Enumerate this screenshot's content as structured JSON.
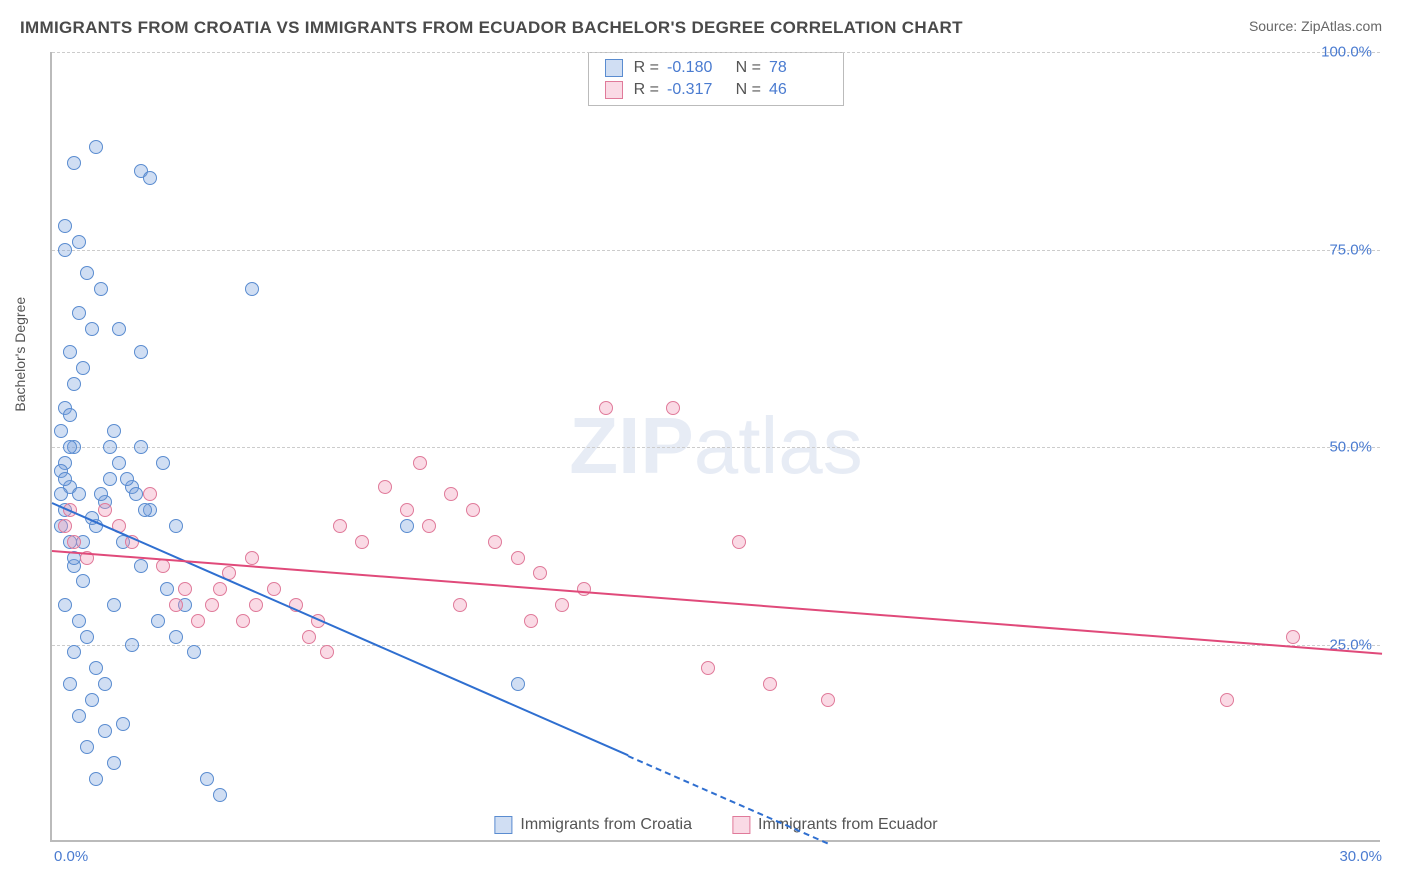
{
  "title": "IMMIGRANTS FROM CROATIA VS IMMIGRANTS FROM ECUADOR BACHELOR'S DEGREE CORRELATION CHART",
  "source": "Source: ZipAtlas.com",
  "watermark_bold": "ZIP",
  "watermark_rest": "atlas",
  "ylabel": "Bachelor's Degree",
  "chart": {
    "type": "scatter",
    "xlim": [
      0,
      30
    ],
    "ylim": [
      0,
      100
    ],
    "x_tick_labels": [
      "0.0%",
      "30.0%"
    ],
    "y_ticks": [
      25,
      50,
      75,
      100
    ],
    "y_tick_labels": [
      "25.0%",
      "50.0%",
      "75.0%",
      "100.0%"
    ],
    "background_color": "#ffffff",
    "grid_color": "#cccccc",
    "grid_dash": true,
    "marker_radius": 7,
    "marker_stroke_width": 1.2,
    "series": [
      {
        "name": "Immigrants from Croatia",
        "fill_color": "rgba(120,160,220,0.35)",
        "stroke_color": "#5a8cd0",
        "R": "-0.180",
        "N": "78",
        "regression": {
          "x0": 0,
          "y0": 43,
          "x1": 17.5,
          "y1": 0,
          "x_data_max": 13,
          "color": "#2f6fd0",
          "width": 2
        },
        "points": [
          [
            0.2,
            40
          ],
          [
            0.3,
            42
          ],
          [
            0.4,
            45
          ],
          [
            0.3,
            48
          ],
          [
            0.5,
            50
          ],
          [
            0.2,
            47
          ],
          [
            0.6,
            44
          ],
          [
            0.4,
            38
          ],
          [
            0.5,
            35
          ],
          [
            0.7,
            33
          ],
          [
            0.3,
            30
          ],
          [
            0.6,
            28
          ],
          [
            0.8,
            26
          ],
          [
            0.5,
            24
          ],
          [
            1.0,
            22
          ],
          [
            0.4,
            20
          ],
          [
            0.9,
            18
          ],
          [
            0.6,
            16
          ],
          [
            1.2,
            14
          ],
          [
            0.8,
            12
          ],
          [
            1.4,
            10
          ],
          [
            1.0,
            8
          ],
          [
            1.6,
            15
          ],
          [
            1.2,
            20
          ],
          [
            1.8,
            25
          ],
          [
            1.4,
            30
          ],
          [
            2.0,
            35
          ],
          [
            1.6,
            38
          ],
          [
            2.2,
            42
          ],
          [
            1.8,
            45
          ],
          [
            0.3,
            55
          ],
          [
            0.5,
            58
          ],
          [
            0.7,
            60
          ],
          [
            0.4,
            62
          ],
          [
            0.9,
            65
          ],
          [
            0.6,
            67
          ],
          [
            1.1,
            70
          ],
          [
            0.8,
            72
          ],
          [
            0.3,
            75
          ],
          [
            1.3,
            50
          ],
          [
            1.5,
            48
          ],
          [
            1.7,
            46
          ],
          [
            1.9,
            44
          ],
          [
            2.1,
            42
          ],
          [
            0.2,
            52
          ],
          [
            0.4,
            54
          ],
          [
            2.4,
            28
          ],
          [
            2.6,
            32
          ],
          [
            2.8,
            26
          ],
          [
            3.0,
            30
          ],
          [
            1.0,
            40
          ],
          [
            1.2,
            43
          ],
          [
            2.0,
            50
          ],
          [
            2.5,
            48
          ],
          [
            3.2,
            24
          ],
          [
            1.4,
            52
          ],
          [
            0.5,
            36
          ],
          [
            0.7,
            38
          ],
          [
            0.9,
            41
          ],
          [
            1.1,
            44
          ],
          [
            1.3,
            46
          ],
          [
            0.2,
            44
          ],
          [
            0.3,
            46
          ],
          [
            0.4,
            50
          ],
          [
            3.5,
            8
          ],
          [
            3.8,
            6
          ],
          [
            1.0,
            88
          ],
          [
            2.0,
            85
          ],
          [
            2.2,
            84
          ],
          [
            4.5,
            70
          ],
          [
            0.3,
            78
          ],
          [
            0.6,
            76
          ],
          [
            1.5,
            65
          ],
          [
            2.0,
            62
          ],
          [
            2.8,
            40
          ],
          [
            8.0,
            40
          ],
          [
            10.5,
            20
          ],
          [
            0.5,
            86
          ]
        ]
      },
      {
        "name": "Immigrants from Ecuador",
        "fill_color": "rgba(240,150,180,0.35)",
        "stroke_color": "#e07a9a",
        "R": "-0.317",
        "N": "46",
        "regression": {
          "x0": 0,
          "y0": 37,
          "x1": 30,
          "y1": 24,
          "x_data_max": 30,
          "color": "#e04a7a",
          "width": 2
        },
        "points": [
          [
            0.3,
            40
          ],
          [
            0.5,
            38
          ],
          [
            0.8,
            36
          ],
          [
            1.2,
            42
          ],
          [
            1.5,
            40
          ],
          [
            1.8,
            38
          ],
          [
            2.2,
            44
          ],
          [
            2.5,
            35
          ],
          [
            2.8,
            30
          ],
          [
            3.0,
            32
          ],
          [
            3.3,
            28
          ],
          [
            3.6,
            30
          ],
          [
            4.0,
            34
          ],
          [
            4.5,
            36
          ],
          [
            5.0,
            32
          ],
          [
            5.5,
            30
          ],
          [
            6.0,
            28
          ],
          [
            6.5,
            40
          ],
          [
            7.0,
            38
          ],
          [
            7.5,
            45
          ],
          [
            8.0,
            42
          ],
          [
            8.5,
            40
          ],
          [
            9.0,
            44
          ],
          [
            9.5,
            42
          ],
          [
            10.0,
            38
          ],
          [
            10.5,
            36
          ],
          [
            11.0,
            34
          ],
          [
            11.5,
            30
          ],
          [
            12.0,
            32
          ],
          [
            5.8,
            26
          ],
          [
            6.2,
            24
          ],
          [
            4.3,
            28
          ],
          [
            12.5,
            55
          ],
          [
            14.0,
            55
          ],
          [
            15.5,
            38
          ],
          [
            16.2,
            20
          ],
          [
            14.8,
            22
          ],
          [
            17.5,
            18
          ],
          [
            8.3,
            48
          ],
          [
            0.4,
            42
          ],
          [
            26.5,
            18
          ],
          [
            28.0,
            26
          ],
          [
            3.8,
            32
          ],
          [
            4.6,
            30
          ],
          [
            9.2,
            30
          ],
          [
            10.8,
            28
          ]
        ]
      }
    ]
  },
  "stats_box": {
    "rows": [
      {
        "swatch_fill": "rgba(120,160,220,0.35)",
        "swatch_border": "#5a8cd0",
        "R_label": "R =",
        "R": "-0.180",
        "N_label": "N =",
        "N": "78"
      },
      {
        "swatch_fill": "rgba(240,150,180,0.35)",
        "swatch_border": "#e07a9a",
        "R_label": "R =",
        "R": "-0.317",
        "N_label": "N =",
        "N": "46"
      }
    ]
  },
  "bottom_legend": [
    {
      "swatch_fill": "rgba(120,160,220,0.35)",
      "swatch_border": "#5a8cd0",
      "label": "Immigrants from Croatia"
    },
    {
      "swatch_fill": "rgba(240,150,180,0.35)",
      "swatch_border": "#e07a9a",
      "label": "Immigrants from Ecuador"
    }
  ]
}
